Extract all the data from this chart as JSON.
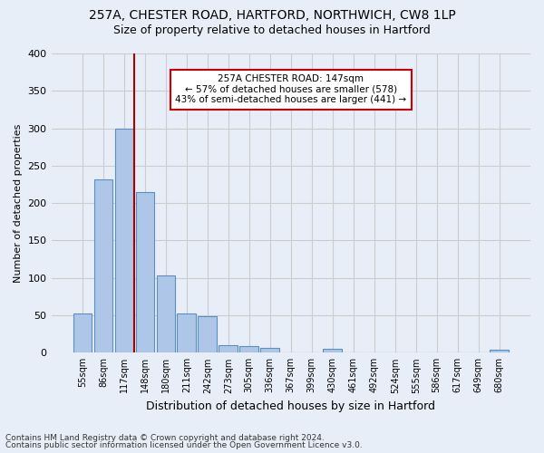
{
  "title1": "257A, CHESTER ROAD, HARTFORD, NORTHWICH, CW8 1LP",
  "title2": "Size of property relative to detached houses in Hartford",
  "xlabel": "Distribution of detached houses by size in Hartford",
  "ylabel": "Number of detached properties",
  "bar_labels": [
    "55sqm",
    "86sqm",
    "117sqm",
    "148sqm",
    "180sqm",
    "211sqm",
    "242sqm",
    "273sqm",
    "305sqm",
    "336sqm",
    "367sqm",
    "399sqm",
    "430sqm",
    "461sqm",
    "492sqm",
    "524sqm",
    "555sqm",
    "586sqm",
    "617sqm",
    "649sqm",
    "680sqm"
  ],
  "bar_values": [
    53,
    232,
    300,
    215,
    103,
    52,
    49,
    10,
    9,
    6,
    0,
    0,
    5,
    0,
    0,
    0,
    0,
    0,
    0,
    0,
    4
  ],
  "bar_color": "#aec6e8",
  "bar_edge_color": "#5a8fc2",
  "vline_color": "#aa0000",
  "annotation_line1": "257A CHESTER ROAD: 147sqm",
  "annotation_line2": "← 57% of detached houses are smaller (578)",
  "annotation_line3": "43% of semi-detached houses are larger (441) →",
  "annotation_box_color": "white",
  "annotation_box_edge_color": "#cc0000",
  "ylim": [
    0,
    400
  ],
  "yticks": [
    0,
    50,
    100,
    150,
    200,
    250,
    300,
    350,
    400
  ],
  "grid_color": "#cccccc",
  "bg_color": "#e8eef8",
  "footer1": "Contains HM Land Registry data © Crown copyright and database right 2024.",
  "footer2": "Contains public sector information licensed under the Open Government Licence v3.0."
}
